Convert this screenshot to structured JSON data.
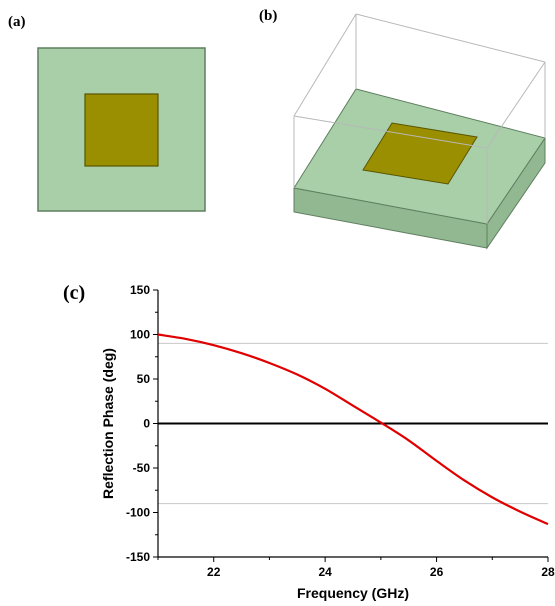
{
  "panels": {
    "a_label": "(a)",
    "b_label": "(b)",
    "c_label": "(c)"
  },
  "colors": {
    "substrate": "#a8cfa8",
    "substrate_side": "#92b892",
    "substrate_edge": "#5f7f5f",
    "patch": "#9a8f00",
    "patch_edge": "#5a5400",
    "box_edge": "#b8b8b8",
    "curve": "#e00000",
    "zero_line": "#000000",
    "ref_line": "#c8c8c8"
  },
  "chart_data": {
    "type": "line",
    "title": "",
    "xlabel": "Frequency (GHz)",
    "ylabel": "Reflection Phase (deg)",
    "xlim": [
      21,
      28
    ],
    "ylim": [
      -150,
      150
    ],
    "xticks": [
      22,
      24,
      26,
      28
    ],
    "yticks": [
      150,
      100,
      50,
      0,
      -50,
      -100,
      -150
    ],
    "reference_lines": [
      90,
      0,
      -90
    ],
    "grid": false,
    "series": [
      {
        "x": [
          21,
          21.5,
          22,
          22.5,
          23,
          23.5,
          24,
          24.5,
          25,
          25.5,
          26,
          26.5,
          27,
          27.5,
          28
        ],
        "y": [
          100,
          95,
          88,
          79,
          68,
          55,
          39,
          20,
          1,
          -19,
          -42,
          -64,
          -83,
          -99,
          -113
        ]
      }
    ]
  }
}
